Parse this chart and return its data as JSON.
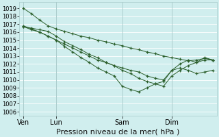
{
  "title": "Pression niveau de la mer( hPa )",
  "bg_color": "#d0eeee",
  "grid_color": "#b8dede",
  "line_color": "#2a5e2a",
  "ylim": [
    1005.5,
    1019.8
  ],
  "yticks": [
    1006,
    1007,
    1008,
    1009,
    1010,
    1011,
    1012,
    1013,
    1014,
    1015,
    1016,
    1017,
    1018,
    1019
  ],
  "xtick_labels": [
    "Ven",
    "Lun",
    "Sam",
    "Dim"
  ],
  "xtick_positions": [
    0,
    4,
    12,
    18
  ],
  "total_points": 24,
  "series": [
    [
      1019.0,
      1018.3,
      1017.5,
      1016.8,
      1016.4,
      1016.1,
      1015.8,
      1015.5,
      1015.3,
      1015.0,
      1014.8,
      1014.5,
      1014.3,
      1014.0,
      1013.8,
      1013.5,
      1013.3,
      1013.0,
      1012.8,
      1012.6,
      1012.4,
      1012.5,
      1012.7,
      1012.5
    ],
    [
      1016.7,
      1016.5,
      1016.3,
      1016.1,
      1015.5,
      1014.8,
      1014.3,
      1013.8,
      1013.2,
      1012.8,
      1012.2,
      1011.8,
      1011.2,
      1010.8,
      1010.2,
      1009.8,
      1009.5,
      1009.2,
      1010.5,
      1011.2,
      1011.8,
      1012.2,
      1012.5,
      1012.5
    ],
    [
      1016.7,
      1016.3,
      1016.0,
      1015.5,
      1015.0,
      1014.5,
      1014.0,
      1013.5,
      1013.0,
      1012.5,
      1012.2,
      1011.8,
      1011.5,
      1011.2,
      1011.0,
      1010.5,
      1010.2,
      1010.0,
      1011.2,
      1011.5,
      1011.2,
      1010.8,
      1011.0,
      1011.2
    ],
    [
      1016.8,
      1016.4,
      1016.0,
      1015.5,
      1015.0,
      1014.2,
      1013.5,
      1012.8,
      1012.2,
      1011.5,
      1011.0,
      1010.5,
      1009.2,
      1008.8,
      1008.5,
      1009.0,
      1009.5,
      1009.8,
      1011.2,
      1012.0,
      1012.5,
      1012.2,
      1012.8,
      1012.5
    ]
  ],
  "tick_fontsize": 6.0,
  "title_fontsize": 8.0
}
